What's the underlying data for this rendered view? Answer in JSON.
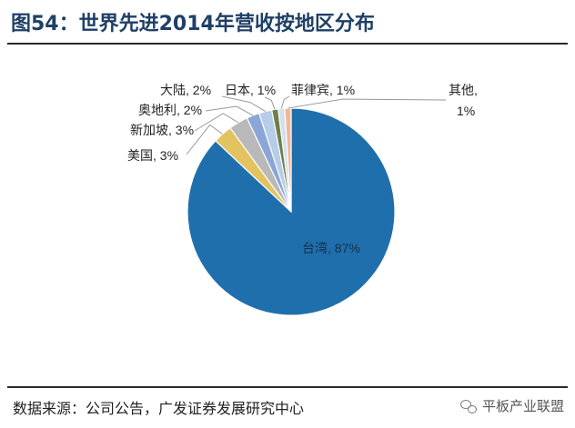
{
  "figure": {
    "title": "图54：世界先进2014年营收按地区分布",
    "source": "数据来源：公司公告，广发证券发展研究中心",
    "watermark": "平板产业联盟"
  },
  "chart_data": {
    "type": "pie",
    "title": "",
    "slices": [
      {
        "name": "台湾",
        "value": 87,
        "label": "台湾, 87%",
        "color": "#1f6fad"
      },
      {
        "name": "美国",
        "value": 3,
        "label": "美国, 3%",
        "color": "#e3c260"
      },
      {
        "name": "新加坡",
        "value": 3,
        "label": "新加坡, 3%",
        "color": "#b9b9b9"
      },
      {
        "name": "奥地利",
        "value": 2,
        "label": "奥地利, 2%",
        "color": "#8aa6d6"
      },
      {
        "name": "大陆",
        "value": 2,
        "label": "大陆, 2%",
        "color": "#b6cce8"
      },
      {
        "name": "日本",
        "value": 1,
        "label": "日本, 1%",
        "color": "#6e7f4a"
      },
      {
        "name": "菲律宾",
        "value": 1,
        "label": "菲律宾, 1%",
        "color": "#d3dfee"
      },
      {
        "name": "其他",
        "value": 1,
        "label_lines": [
          "其他,",
          "1%"
        ],
        "color": "#f0b89a"
      }
    ]
  }
}
